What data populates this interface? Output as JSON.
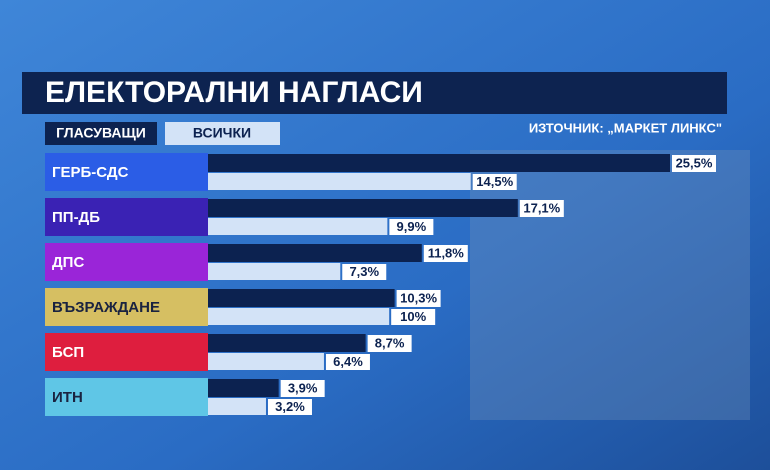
{
  "chart_data": {
    "type": "bar",
    "title": "ЕЛЕКТОРАЛНИ НАГЛАСИ",
    "source": "ИЗТОЧНИК: „МАРКЕТ ЛИНКС\"",
    "categories": [
      "ГЕРБ-СДС",
      "ПП-ДБ",
      "ДПС",
      "ВЪЗРАЖДАНЕ",
      "БСП",
      "ИТН"
    ],
    "category_colors": [
      "#2b5de6",
      "#3a22b4",
      "#9a25d8",
      "#d6bf62",
      "#de1e3e",
      "#5fc6e6"
    ],
    "series": [
      {
        "name": "ГЛАСУВАЩИ",
        "color": "#0c2250",
        "values": [
          25.5,
          17.1,
          11.8,
          10.3,
          8.7,
          3.9
        ],
        "value_labels": [
          "25,5%",
          "17,1%",
          "11,8%",
          "10,3%",
          "8,7%",
          "3,9%"
        ]
      },
      {
        "name": "ВСИЧКИ",
        "color": "#d3e3f7",
        "values": [
          14.5,
          9.9,
          7.3,
          10,
          6.4,
          3.2
        ],
        "value_labels": [
          "14,5%",
          "9,9%",
          "7,3%",
          "10%",
          "6,4%",
          "3,2%"
        ]
      }
    ]
  }
}
